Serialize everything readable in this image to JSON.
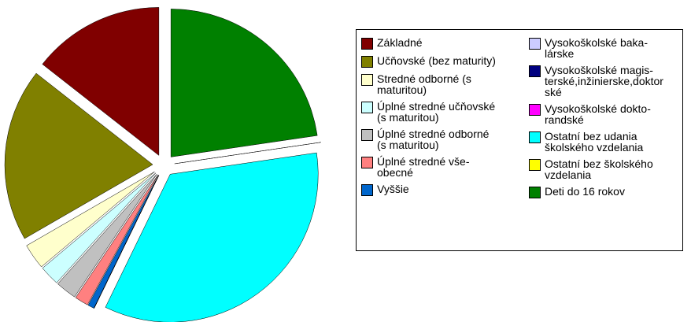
{
  "chart_data": {
    "type": "pie",
    "series": [
      {
        "name": "Základné",
        "color": "#800000",
        "values": [
          14.5
        ]
      },
      {
        "name": "Učňovské (bez maturity)",
        "color": "#808000",
        "values": [
          19
        ]
      },
      {
        "name": "Stredné odborné (s\nmaturitou)",
        "color": "#ffffcc",
        "values": [
          2.8
        ]
      },
      {
        "name": "Úplné stredné učňovské\n(s maturitou)",
        "color": "#ccffff",
        "values": [
          2.2
        ]
      },
      {
        "name": "Úplné stredné odborné\n(s maturitou)",
        "color": "#c0c0c0",
        "values": [
          2.3
        ]
      },
      {
        "name": "Úplné stredné vše-\nobecné",
        "color": "#ff8080",
        "values": [
          1.5
        ]
      },
      {
        "name": "Vyššie",
        "color": "#0066cc",
        "values": [
          0.7
        ]
      },
      {
        "name": "Vysokoškolské baka-\nlárske",
        "color": "#ccccff",
        "values": [
          0
        ]
      },
      {
        "name": "Vysokoškolské magis-\nterské,inžinierske,doktor\nské",
        "color": "#000080",
        "values": [
          0
        ]
      },
      {
        "name": "Vysokoškolské dokto-\nrandské",
        "color": "#ff00ff",
        "values": [
          0
        ]
      },
      {
        "name": "Ostatní bez udania\nškolského vzdelania",
        "color": "#00ffff",
        "values": [
          34.7
        ]
      },
      {
        "name": "Ostatní bez školského\nvzdelania",
        "color": "#ffff00",
        "values": [
          0
        ]
      },
      {
        "name": "Deti do 16 rokov",
        "color": "#008000",
        "values": [
          22.8
        ]
      }
    ]
  }
}
